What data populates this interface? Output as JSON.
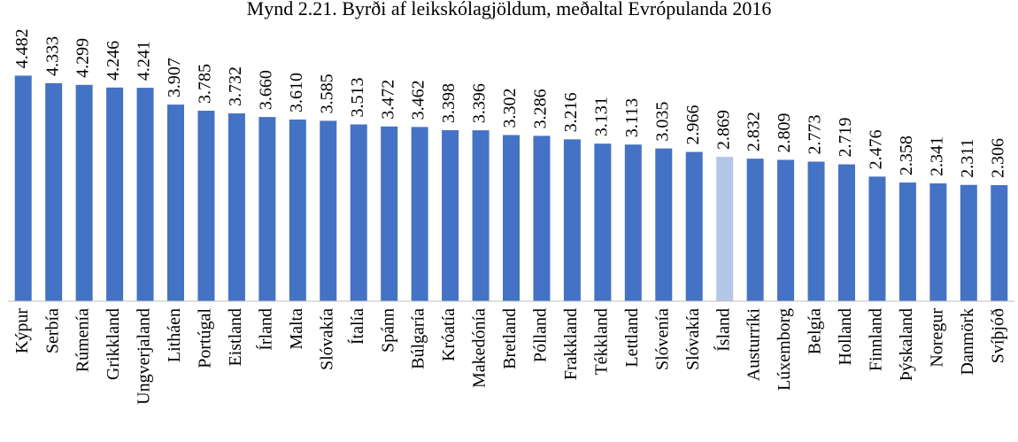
{
  "chart_data": {
    "type": "bar",
    "title": "Mynd 2.21. Byrði af leikskólagjöldum, meðaltal Evrópulanda 2016",
    "categories": [
      "Kýpur",
      "Serbía",
      "Rúmenía",
      "Grikkland",
      "Ungverjaland",
      "Litháen",
      "Portúgal",
      "Eistland",
      "Írland",
      "Malta",
      "Slóvakía",
      "Ítalía",
      "Spánn",
      "Búlgaría",
      "Króatía",
      "Makedónía",
      "Bretland",
      "Pólland",
      "Frakkland",
      "Tékkland",
      "Lettland",
      "Slóvenía",
      "Slóvakía",
      "Ísland",
      "Austurríki",
      "Lúxemborg",
      "Belgía",
      "Holland",
      "Finnland",
      "Þýskaland",
      "Noregur",
      "Danmörk",
      "Svíþjóð"
    ],
    "values": [
      4.482,
      4.333,
      4.299,
      4.246,
      4.241,
      3.907,
      3.785,
      3.732,
      3.66,
      3.61,
      3.585,
      3.513,
      3.472,
      3.462,
      3.398,
      3.396,
      3.302,
      3.286,
      3.216,
      3.131,
      3.113,
      3.035,
      2.966,
      2.869,
      2.832,
      2.809,
      2.773,
      2.719,
      2.476,
      2.358,
      2.341,
      2.311,
      2.306
    ],
    "value_labels": [
      "4.482",
      "4.333",
      "4.299",
      "4.246",
      "4.241",
      "3.907",
      "3.785",
      "3.732",
      "3.660",
      "3.610",
      "3.585",
      "3.513",
      "3.472",
      "3.462",
      "3.398",
      "3.396",
      "3.302",
      "3.286",
      "3.216",
      "3.131",
      "3.113",
      "3.035",
      "2.966",
      "2.869",
      "2.832",
      "2.809",
      "2.773",
      "2.719",
      "2.476",
      "2.358",
      "2.341",
      "2.311",
      "2.306"
    ],
    "colors": [
      "#4472c4",
      "#4472c4",
      "#4472c4",
      "#4472c4",
      "#4472c4",
      "#4472c4",
      "#4472c4",
      "#4472c4",
      "#4472c4",
      "#4472c4",
      "#4472c4",
      "#4472c4",
      "#4472c4",
      "#4472c4",
      "#4472c4",
      "#4472c4",
      "#4472c4",
      "#4472c4",
      "#4472c4",
      "#4472c4",
      "#4472c4",
      "#4472c4",
      "#4472c4",
      "#b4c7e7",
      "#4472c4",
      "#4472c4",
      "#4472c4",
      "#4472c4",
      "#4472c4",
      "#4472c4",
      "#4472c4",
      "#4472c4",
      "#4472c4"
    ],
    "ylim": [
      0,
      5
    ]
  }
}
